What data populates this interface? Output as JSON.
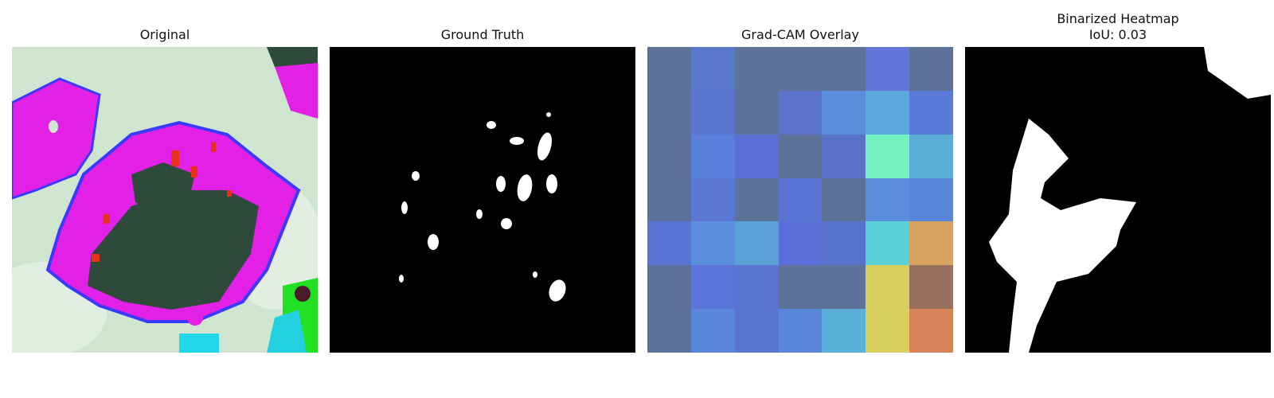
{
  "panels": {
    "original": {
      "title": "Original"
    },
    "ground_truth": {
      "title": "Ground Truth"
    },
    "gradcam": {
      "title": "Grad-CAM Overlay",
      "grid_colors": [
        [
          "#5e7299",
          "#5a78c9",
          "#5e7299",
          "#5e7299",
          "#5e7299",
          "#6276da",
          "#5e7299"
        ],
        [
          "#5e7299",
          "#5a74d0",
          "#5e7299",
          "#5b73c9",
          "#5a8ddc",
          "#5aa8dc",
          "#5a7cd8"
        ],
        [
          "#5e7299",
          "#5a7fda",
          "#5a6fd3",
          "#5e7299",
          "#5a73c9",
          "#74f2c3",
          "#5aaed8"
        ],
        [
          "#5e7299",
          "#5a77d4",
          "#5e7299",
          "#5a72d4",
          "#5e7299",
          "#5a8edc",
          "#5a86da"
        ],
        [
          "#5a74d3",
          "#5a8ddc",
          "#5aa1d8",
          "#5a6fd8",
          "#5a72cf",
          "#5ad1d8",
          "#d8a35e"
        ],
        [
          "#5e7299",
          "#5a74d8",
          "#5a74d0",
          "#5e7299",
          "#5e7299",
          "#d8cf5e",
          "#97705e"
        ],
        [
          "#5e7299",
          "#5a87dc",
          "#5a74d0",
          "#5a87dc",
          "#5ab0d8",
          "#d8cf5e",
          "#d8845a"
        ]
      ]
    },
    "binarized": {
      "title_line1": "Binarized Heatmap",
      "title_line2": "IoU: 0.03"
    }
  },
  "colors": {
    "magenta": "#e320e6",
    "dark_leaf": "#2e4a3a",
    "blue_edge": "#3a3aff",
    "background": "#cfe5cf",
    "mask_white": "#ffffff",
    "mask_black": "#000000"
  }
}
